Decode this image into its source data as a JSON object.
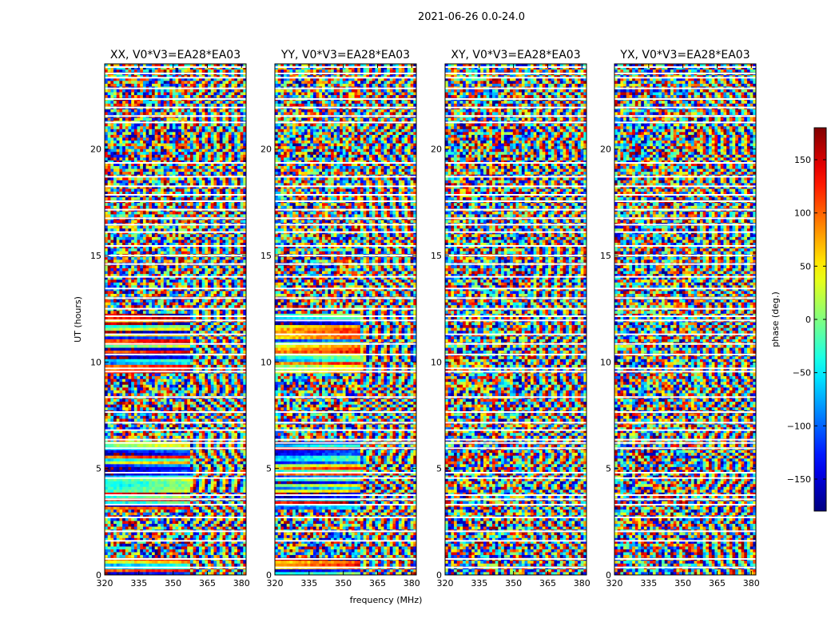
{
  "figure": {
    "suptitle": "2021-06-26 0.0-24.0"
  },
  "chart_data": {
    "type": "heatmap",
    "shared": {
      "xlabel": "frequency (MHz)",
      "ylabel": "UT (hours)",
      "xlim": [
        320,
        382
      ],
      "ylim": [
        0,
        24
      ],
      "xticks": [
        320,
        335,
        350,
        365,
        380
      ],
      "yticks": [
        0,
        5,
        10,
        15,
        20
      ]
    },
    "panels": [
      {
        "title": "XX, V0*V3=EA28*EA03",
        "polarization": "XX"
      },
      {
        "title": "YY, V0*V3=EA28*EA03",
        "polarization": "YY"
      },
      {
        "title": "XY, V0*V3=EA28*EA03",
        "polarization": "XY"
      },
      {
        "title": "YX, V0*V3=EA28*EA03",
        "polarization": "YX"
      }
    ],
    "colorbar": {
      "label": "phase (deg.)",
      "range": [
        -180,
        180
      ],
      "ticks": [
        -150,
        -100,
        -50,
        0,
        50,
        100,
        150
      ],
      "colormap": "jet",
      "colors": [
        "#00007f",
        "#0000ff",
        "#007fff",
        "#00ffff",
        "#7fff7f",
        "#ffff00",
        "#ff7f00",
        "#ff0000",
        "#7f0000"
      ]
    },
    "flag_gaps_hours": [
      0.35,
      0.75,
      1.6,
      2.05,
      2.7,
      3.3,
      3.55,
      3.75,
      4.55,
      4.8,
      5.95,
      6.2,
      6.35,
      6.8,
      7.15,
      7.65,
      8.35,
      9.55,
      9.7,
      10.35,
      10.85,
      11.3,
      11.95,
      12.15,
      12.5,
      13.0,
      13.45,
      14.0,
      14.6,
      15.0,
      15.45,
      16.1,
      16.45,
      16.75,
      17.15,
      17.55,
      17.85,
      18.25,
      18.7,
      19.35,
      21.25,
      21.55,
      21.95,
      22.35,
      22.85,
      23.35,
      23.55,
      23.85
    ]
  }
}
